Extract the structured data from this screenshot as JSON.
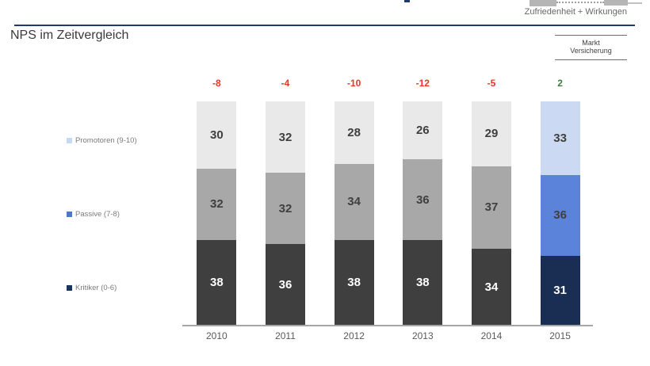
{
  "header": {
    "tagline": "Zufriedenheit + Wirkungen",
    "rule_color": "#1f3a6d",
    "market_box": {
      "line1": "Markt",
      "line2": "Versicherung"
    }
  },
  "title": "NPS im Zeitvergleich",
  "chart_data": {
    "type": "bar",
    "variant": "stacked-percent",
    "title": "NPS im Zeitvergleich",
    "categories": [
      "2010",
      "2011",
      "2012",
      "2013",
      "2014",
      "2015"
    ],
    "series": [
      {
        "name": "Kritiker (0-6)",
        "values": [
          38,
          36,
          38,
          38,
          34,
          31
        ]
      },
      {
        "name": "Passive (7-8)",
        "values": [
          32,
          32,
          34,
          36,
          37,
          36
        ]
      },
      {
        "name": "Promotoren (9-10)",
        "values": [
          30,
          32,
          28,
          26,
          29,
          33
        ]
      }
    ],
    "nps": {
      "values": [
        -8,
        -4,
        -10,
        -12,
        -5,
        2
      ],
      "negative_color": "#ee3329",
      "positive_color": "#3e7d3e"
    },
    "legend": [
      {
        "label": "Promotoren (9-10)",
        "color": "#c5d9f1"
      },
      {
        "label": "Passive (7-8)",
        "color": "#4a7ac6"
      },
      {
        "label": "Kritiker (0-6)",
        "color": "#17365d"
      }
    ],
    "colors": {
      "default": {
        "promotoren": "#e9e9e9",
        "passive": "#a8a8a8",
        "kritiker": "#3f3f3f"
      },
      "highlight": {
        "promotoren": "#cbdaf2",
        "passive": "#5b83d9",
        "kritiker": "#1a2e54"
      },
      "highlight_category": "2015"
    },
    "value_label_colors": {
      "on_light": "#3f3f3f",
      "on_dark": "#ffffff"
    },
    "axis_color": "#a6a6a6",
    "ylim": [
      0,
      100
    ],
    "legend_position": "left"
  }
}
